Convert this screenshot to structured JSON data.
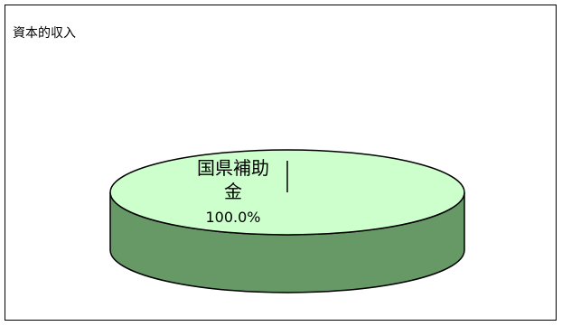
{
  "chart_data": {
    "type": "pie",
    "title": "資本的収入",
    "slices": [
      {
        "label_lines": [
          "国県補助",
          "金"
        ],
        "percent_label": "100.0%",
        "value": 100.0
      }
    ],
    "colors": {
      "top": "#ccffcc",
      "side": "#669966",
      "outline": "#000000"
    }
  }
}
